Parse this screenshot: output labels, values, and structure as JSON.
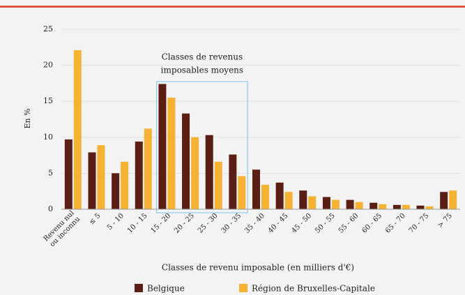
{
  "chart_data": {
    "type": "bar",
    "categories": [
      "Revenu nul\nou inconnu",
      "≤ 5",
      "5 - 10",
      "10 - 15",
      "15 - 20",
      "20 - 25",
      "25 - 30",
      "30 - 35",
      "35 - 40",
      "40 - 45",
      "45 - 50",
      "50 - 55",
      "55 - 60",
      "60 - 65",
      "65 - 70",
      "70 - 75",
      "> 75"
    ],
    "series": [
      {
        "name": "Belgique",
        "color": "#5a1e14",
        "values": [
          9.7,
          7.9,
          5.0,
          9.4,
          17.4,
          13.3,
          10.3,
          7.6,
          5.5,
          3.7,
          2.6,
          1.7,
          1.3,
          0.9,
          0.6,
          0.5,
          2.4
        ]
      },
      {
        "name": "Région de Bruxelles-Capitale",
        "color": "#f6b233",
        "values": [
          22.1,
          8.9,
          6.6,
          11.2,
          15.5,
          10.0,
          6.6,
          4.6,
          3.4,
          2.4,
          1.8,
          1.3,
          1.0,
          0.7,
          0.6,
          0.4,
          2.6
        ]
      }
    ],
    "ylabel": "En %",
    "xlabel": "Classes de revenu imposable (en milliers d'€)",
    "annotation": [
      "Classes de revenus",
      "imposables moyens"
    ],
    "ylim": [
      0,
      25
    ],
    "yticks": [
      0,
      5,
      10,
      15,
      20,
      25
    ],
    "grid": true
  }
}
